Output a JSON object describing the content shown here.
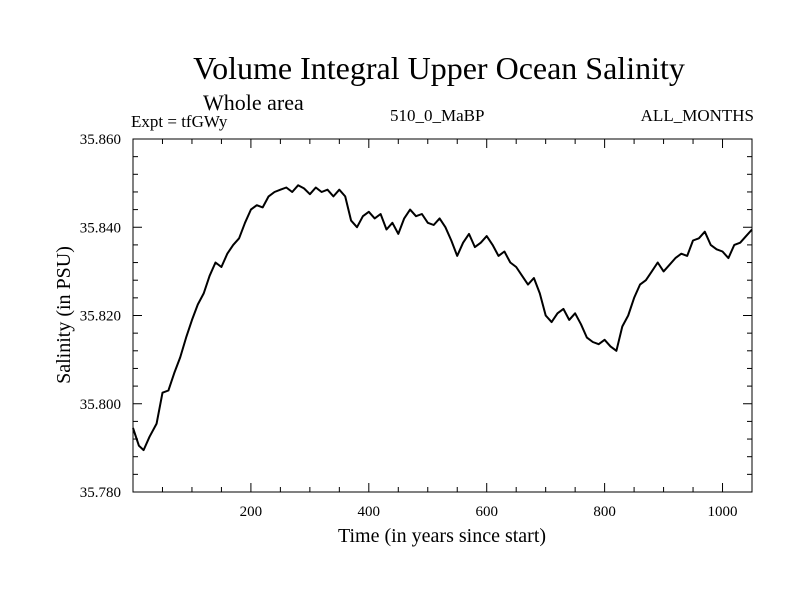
{
  "chart_data": {
    "type": "line",
    "title": "Volume Integral Upper Ocean Salinity",
    "subtitle": "Whole area",
    "experiment_label": "Expt = tfGWy",
    "experiment_id": "510_0_MaBP",
    "months_label": "ALL_MONTHS",
    "xlabel": "Time (in years since start)",
    "ylabel": "Salinity (in PSU)",
    "xlim": [
      0,
      1050
    ],
    "ylim": [
      35.78,
      35.86
    ],
    "xticks": [
      200,
      400,
      600,
      800,
      1000
    ],
    "xtick_labels": [
      "200",
      "400",
      "600",
      "800",
      "1000"
    ],
    "yticks": [
      35.78,
      35.8,
      35.82,
      35.84,
      35.86
    ],
    "ytick_labels": [
      "35.780",
      "35.800",
      "35.820",
      "35.840",
      "35.860"
    ],
    "series": [
      {
        "name": "Salinity",
        "x": [
          0,
          10,
          18,
          28,
          40,
          50,
          60,
          70,
          80,
          90,
          100,
          110,
          120,
          130,
          140,
          150,
          160,
          170,
          180,
          190,
          200,
          210,
          220,
          230,
          240,
          250,
          260,
          270,
          280,
          290,
          300,
          310,
          320,
          330,
          340,
          350,
          360,
          370,
          380,
          390,
          400,
          410,
          420,
          430,
          440,
          450,
          460,
          470,
          480,
          490,
          500,
          510,
          520,
          530,
          540,
          550,
          560,
          570,
          580,
          590,
          600,
          610,
          620,
          630,
          640,
          650,
          660,
          670,
          680,
          690,
          700,
          710,
          720,
          730,
          740,
          750,
          760,
          770,
          780,
          790,
          800,
          810,
          820,
          830,
          840,
          850,
          860,
          870,
          880,
          890,
          900,
          910,
          920,
          930,
          940,
          950,
          960,
          970,
          980,
          990,
          1000,
          1010,
          1020,
          1030,
          1040,
          1050
        ],
        "values": [
          35.7945,
          35.7905,
          35.7895,
          35.7925,
          35.7955,
          35.8025,
          35.803,
          35.807,
          35.8105,
          35.815,
          35.819,
          35.8225,
          35.825,
          35.829,
          35.832,
          35.831,
          35.834,
          35.836,
          35.8375,
          35.841,
          35.844,
          35.845,
          35.8445,
          35.847,
          35.848,
          35.8485,
          35.849,
          35.848,
          35.8495,
          35.8488,
          35.8475,
          35.849,
          35.848,
          35.8485,
          35.847,
          35.8485,
          35.847,
          35.8415,
          35.84,
          35.8425,
          35.8435,
          35.842,
          35.843,
          35.8395,
          35.841,
          35.8385,
          35.842,
          35.844,
          35.8425,
          35.843,
          35.841,
          35.8405,
          35.842,
          35.84,
          35.837,
          35.8335,
          35.8365,
          35.8385,
          35.8355,
          35.8365,
          35.838,
          35.836,
          35.8335,
          35.8345,
          35.832,
          35.831,
          35.829,
          35.827,
          35.8285,
          35.825,
          35.82,
          35.8185,
          35.8205,
          35.8215,
          35.819,
          35.8205,
          35.818,
          35.815,
          35.814,
          35.8135,
          35.8145,
          35.813,
          35.812,
          35.8175,
          35.82,
          35.824,
          35.827,
          35.828,
          35.83,
          35.832,
          35.83,
          35.8315,
          35.833,
          35.834,
          35.8335,
          35.837,
          35.8375,
          35.839,
          35.836,
          35.835,
          35.8345,
          35.833,
          35.836,
          35.8365,
          35.838,
          35.8395
        ]
      }
    ]
  }
}
